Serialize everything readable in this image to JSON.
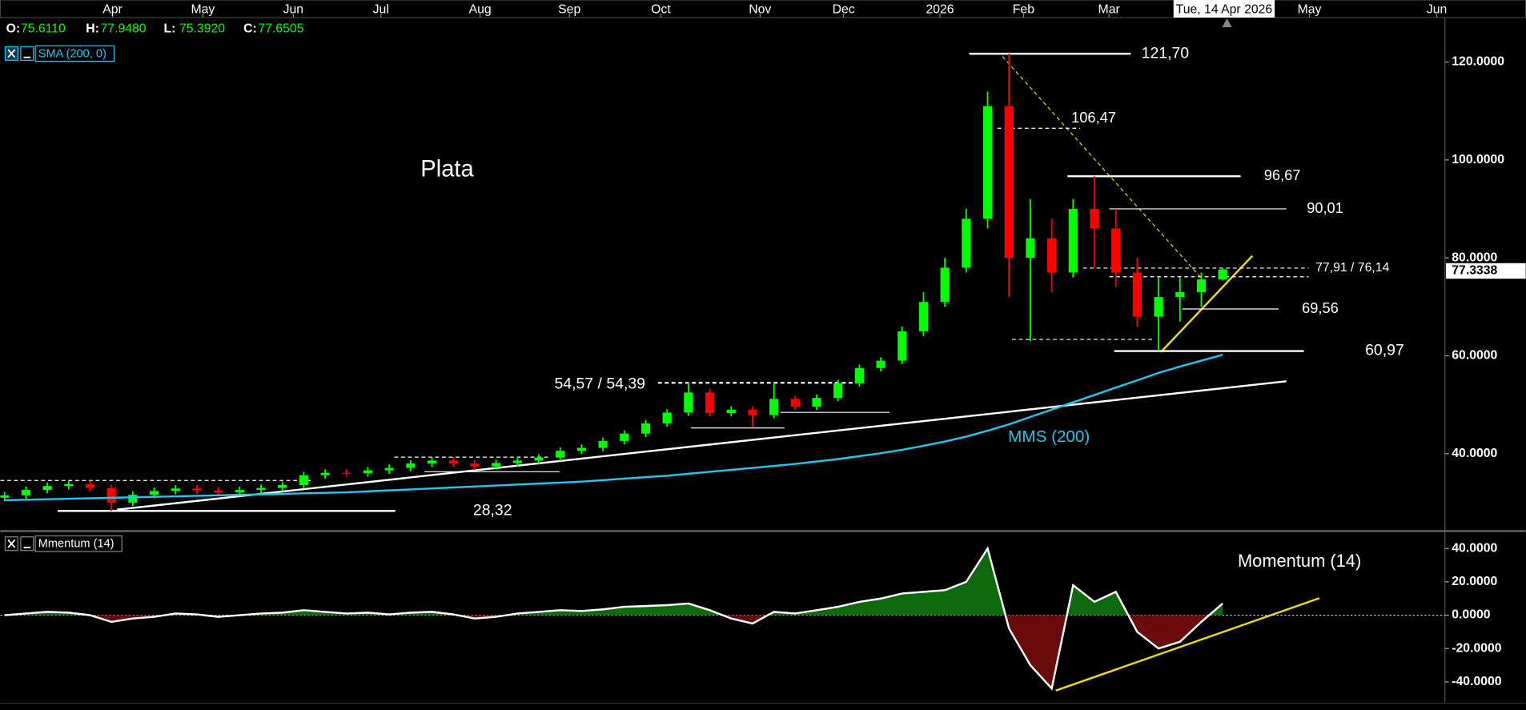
{
  "header": {
    "open": {
      "label": "O:",
      "value": "75.6110"
    },
    "high": {
      "label": "H:",
      "value": "77.9480"
    },
    "low": {
      "label": "L:",
      "value": "75.3920"
    },
    "close": {
      "label": "C:",
      "value": "77.6505"
    },
    "date_marker": "Tue, 14 Apr 2026"
  },
  "chart_data": [
    {
      "type": "candlestick",
      "title": "Plata",
      "sma_label": "MMS (200)",
      "up_color": "#00ff00",
      "down_color": "#ff0000",
      "xlim": [
        -0.2,
        67.4
      ],
      "xticks": [
        {
          "value": 5.05,
          "label": "Apr"
        },
        {
          "value": 9.28,
          "label": "May"
        },
        {
          "value": 13.51,
          "label": "Jun"
        },
        {
          "value": 17.61,
          "label": "Jul"
        },
        {
          "value": 22.25,
          "label": "Aug"
        },
        {
          "value": 26.43,
          "label": "Sep"
        },
        {
          "value": 30.71,
          "label": "Oct"
        },
        {
          "value": 35.35,
          "label": "Nov"
        },
        {
          "value": 39.26,
          "label": "Dec"
        },
        {
          "value": 43.77,
          "label": "2026"
        },
        {
          "value": 47.68,
          "label": "Feb"
        },
        {
          "value": 51.68,
          "label": "Mar"
        },
        {
          "value": 61.06,
          "label": "May"
        },
        {
          "value": 67.02,
          "label": "Jun"
        }
      ],
      "ylim": [
        24.4,
        129.1
      ],
      "yticks": [
        {
          "value": 120,
          "label": "120.0000"
        },
        {
          "value": 100,
          "label": "100.0000"
        },
        {
          "value": 80,
          "label": "80.0000"
        },
        {
          "value": 60,
          "label": "60.0000"
        },
        {
          "value": 40,
          "label": "40.0000"
        }
      ],
      "last_price": {
        "value": 77.3338,
        "label": "77.3338"
      },
      "open": [
        31.0,
        31.5,
        32.6,
        33.4,
        33.8,
        33.0,
        30.0,
        31.6,
        32.4,
        32.9,
        32.5,
        32.1,
        32.6,
        33.0,
        33.6,
        35.6,
        36.1,
        36.0,
        36.6,
        37.1,
        38.0,
        38.6,
        38.0,
        37.4,
        38.1,
        38.6,
        39.2,
        40.6,
        41.2,
        42.6,
        44.1,
        46.2,
        48.4,
        52.5,
        48.3,
        49.0,
        47.9,
        51.2,
        49.6,
        51.4,
        54.4,
        57.5,
        59.0,
        65,
        71,
        78,
        88,
        111,
        80,
        84,
        77,
        90,
        86,
        77,
        68,
        72,
        73,
        75.611
      ],
      "high": [
        32.2,
        33.3,
        34.1,
        34.5,
        34.5,
        33.7,
        32.3,
        33.1,
        33.6,
        33.6,
        33.2,
        33.3,
        33.7,
        34.3,
        36.3,
        36.8,
        36.8,
        37.3,
        37.8,
        38.7,
        39.3,
        39.3,
        38.7,
        38.8,
        39.3,
        39.9,
        41.3,
        41.9,
        43.3,
        44.8,
        46.9,
        49.1,
        54.57,
        53.2,
        49.7,
        49.7,
        54.39,
        51.9,
        52.1,
        55.1,
        58.2,
        59.7,
        66.0,
        73,
        80,
        90,
        114,
        121.7,
        92,
        88,
        92,
        96.67,
        90.01,
        80,
        76,
        76,
        77,
        77.948
      ],
      "low": [
        30.3,
        30.8,
        31.9,
        32.7,
        32.3,
        28.32,
        29.3,
        30.9,
        31.7,
        31.8,
        31.4,
        31.4,
        31.9,
        32.3,
        32.9,
        34.9,
        35.3,
        35.3,
        35.9,
        36.4,
        37.3,
        37.3,
        36.7,
        36.7,
        37.4,
        37.9,
        38.5,
        39.9,
        40.5,
        41.9,
        43.4,
        45.5,
        47.7,
        47.6,
        47.6,
        45.5,
        47.2,
        48.9,
        48.9,
        50.7,
        53.7,
        56.8,
        58.3,
        64,
        70,
        77,
        86,
        72,
        63,
        73,
        76,
        78,
        74,
        66,
        60.97,
        67,
        70,
        75.392
      ],
      "close": [
        31.5,
        32.6,
        33.4,
        33.8,
        33.0,
        30.0,
        31.6,
        32.4,
        32.9,
        32.5,
        32.1,
        32.6,
        33.0,
        33.6,
        35.6,
        36.1,
        36.0,
        36.6,
        37.1,
        38.0,
        38.6,
        38.0,
        37.4,
        38.1,
        38.6,
        39.2,
        40.6,
        41.2,
        42.6,
        44.1,
        46.2,
        48.4,
        52.5,
        48.3,
        49.0,
        47.9,
        51.2,
        49.6,
        51.4,
        54.4,
        57.5,
        59.0,
        65.0,
        71,
        78,
        88,
        111,
        80,
        84,
        77,
        90,
        86,
        77,
        68,
        72,
        73,
        75.6,
        77.6505
      ],
      "series": [
        {
          "name": "SMA (200, 0)",
          "color": "#1ec8f0",
          "values": [
            30.5,
            30.6,
            30.7,
            30.8,
            30.9,
            31,
            31.1,
            31.2,
            31.3,
            31.4,
            31.5,
            31.6,
            31.7,
            31.8,
            31.9,
            32,
            32.1,
            32.3,
            32.5,
            32.7,
            32.9,
            33.1,
            33.3,
            33.5,
            33.7,
            33.9,
            34.1,
            34.3,
            34.6,
            34.9,
            35.2,
            35.5,
            35.9,
            36.3,
            36.7,
            37.1,
            37.5,
            37.9,
            38.4,
            38.9,
            39.5,
            40.1,
            40.8,
            41.6,
            42.5,
            43.5,
            44.7,
            46,
            47.5,
            49,
            50.5,
            52,
            53.5,
            55,
            56.5,
            57.8,
            59,
            60.2
          ]
        }
      ],
      "levels": [
        {
          "label": "121,70",
          "values": [
            121.7
          ]
        },
        {
          "label": "106,47",
          "values": [
            106.47
          ]
        },
        {
          "label": "96,67",
          "values": [
            96.67
          ]
        },
        {
          "label": "90,01",
          "values": [
            90.01
          ]
        },
        {
          "label": "77,91 / 76,14",
          "values": [
            77.91,
            76.14
          ]
        },
        {
          "label": "69,56",
          "values": [
            69.56
          ]
        },
        {
          "label": "60,97",
          "values": [
            60.97
          ]
        },
        {
          "label": "54,57 / 54,39",
          "values": [
            54.57,
            54.39
          ]
        },
        {
          "label": "28,32",
          "values": [
            28.32
          ]
        }
      ]
    },
    {
      "type": "area",
      "title": "Momentum (14)",
      "up_color": "#0d6b0d",
      "down_color": "#6b0a0a",
      "xlim": [
        -0.2,
        67.4
      ],
      "ylim": [
        -52.2,
        49.3
      ],
      "yticks": [
        {
          "value": 40,
          "label": "40.0000"
        },
        {
          "value": 20,
          "label": "20.0000"
        },
        {
          "value": 0,
          "label": "0.0000"
        },
        {
          "value": -20,
          "label": "-20.0000"
        },
        {
          "value": -40,
          "label": "-40.0000"
        }
      ],
      "series": [
        {
          "name": "Mmentum (14)",
          "color": "#ffffff",
          "values": [
            0,
            1,
            2,
            1.5,
            0,
            -4,
            -2,
            -1,
            1,
            0.5,
            -1,
            0,
            1,
            1.5,
            3,
            2,
            1,
            1.5,
            0.5,
            1.5,
            2,
            0.5,
            -2,
            -1,
            1,
            2,
            3,
            2.5,
            3.5,
            5,
            5.5,
            6,
            7,
            3,
            -2,
            -5,
            2,
            1,
            3,
            5,
            8,
            10,
            13,
            14,
            15,
            20,
            40,
            -8,
            -30,
            -44,
            18,
            8,
            14,
            -10,
            -20,
            -16,
            -4,
            7
          ]
        }
      ]
    }
  ]
}
